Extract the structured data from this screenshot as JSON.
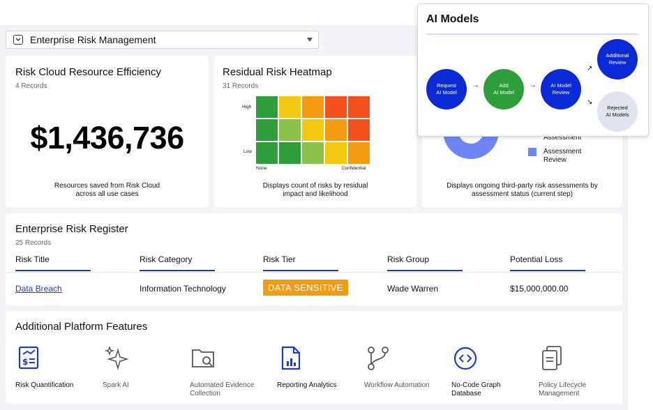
{
  "selector": {
    "value": "Enterprise Risk Management"
  },
  "efficiency": {
    "title": "Risk Cloud Resource Efficiency",
    "records": "4 Records",
    "amount": "$1,436,736",
    "footer_line1": "Resources saved from Risk Cloud",
    "footer_line2": "across all use cases"
  },
  "heatmap": {
    "title": "Residual Risk Heatmap",
    "records": "31 Records",
    "y_high": "High",
    "y_low": "Low",
    "x_none": "None",
    "x_conf": "Confidential",
    "rows": [
      [
        "#2e9e3a",
        "#f2c811",
        "#f39c12",
        "#f4511e",
        "#f4511e"
      ],
      [
        "#2e9e3a",
        "#8bc34a",
        "#f2c811",
        "#f39c12",
        "#f4511e"
      ],
      [
        "#2e9e3a",
        "#2e9e3a",
        "#8bc34a",
        "#f2c811",
        "#f39c12"
      ]
    ],
    "footer_line1": "Displays count of risks by residual",
    "footer_line2": "impact and likelihood"
  },
  "assessments": {
    "legend_partial": "Assessment",
    "legend_item_line1": "Assessment",
    "legend_item_line2": "Review",
    "footer_line1": "Displays ongoing third-party risk assessments by",
    "footer_line2": "assessment status (current step)",
    "colors": {
      "dark": "#1a2fd4",
      "light": "#6f85f5"
    }
  },
  "register": {
    "title": "Enterprise Risk Register",
    "records": "25 Records",
    "columns": [
      "Risk Title",
      "Risk Category",
      "Risk Tier",
      "Risk Group",
      "Potential Loss"
    ],
    "row": {
      "title": "Data Breach",
      "category": "Information Technology",
      "tier": "DATA SENSITIVE",
      "group": "Wade Warren",
      "loss": "$15,000,000.00"
    }
  },
  "features": {
    "title": "Additional Platform Features",
    "items": [
      {
        "line1": "Risk Quantification",
        "line2": "",
        "icon": "quantification-icon"
      },
      {
        "line1": "Spark AI",
        "line2": "",
        "icon": "sparkle-icon"
      },
      {
        "line1": "Automated Evidence",
        "line2": "Collection",
        "icon": "folder-search-icon"
      },
      {
        "line1": "Reporting Analytics",
        "line2": "",
        "icon": "report-chart-icon"
      },
      {
        "line1": "Workflow Automation",
        "line2": "",
        "icon": "workflow-icon"
      },
      {
        "line1": "No-Code Graph",
        "line2": "Database",
        "icon": "code-icon"
      },
      {
        "line1": "Policy Lifecycle",
        "line2": "Management",
        "icon": "policy-docs-icon"
      }
    ]
  },
  "ai_models": {
    "title": "AI Models",
    "nodes": {
      "request_1": "Request",
      "request_2": "AI Model",
      "add_1": "Add",
      "add_2": "AI Model",
      "review_1": "AI Model",
      "review_2": "Review",
      "additional_1": "Additional",
      "additional_2": "Review",
      "rejected_1": "Rejected",
      "rejected_2": "AI Models"
    },
    "colors": {
      "blue": "#0a2ad6",
      "green": "#2e9e3a",
      "grey": "#e1e3ef"
    }
  }
}
